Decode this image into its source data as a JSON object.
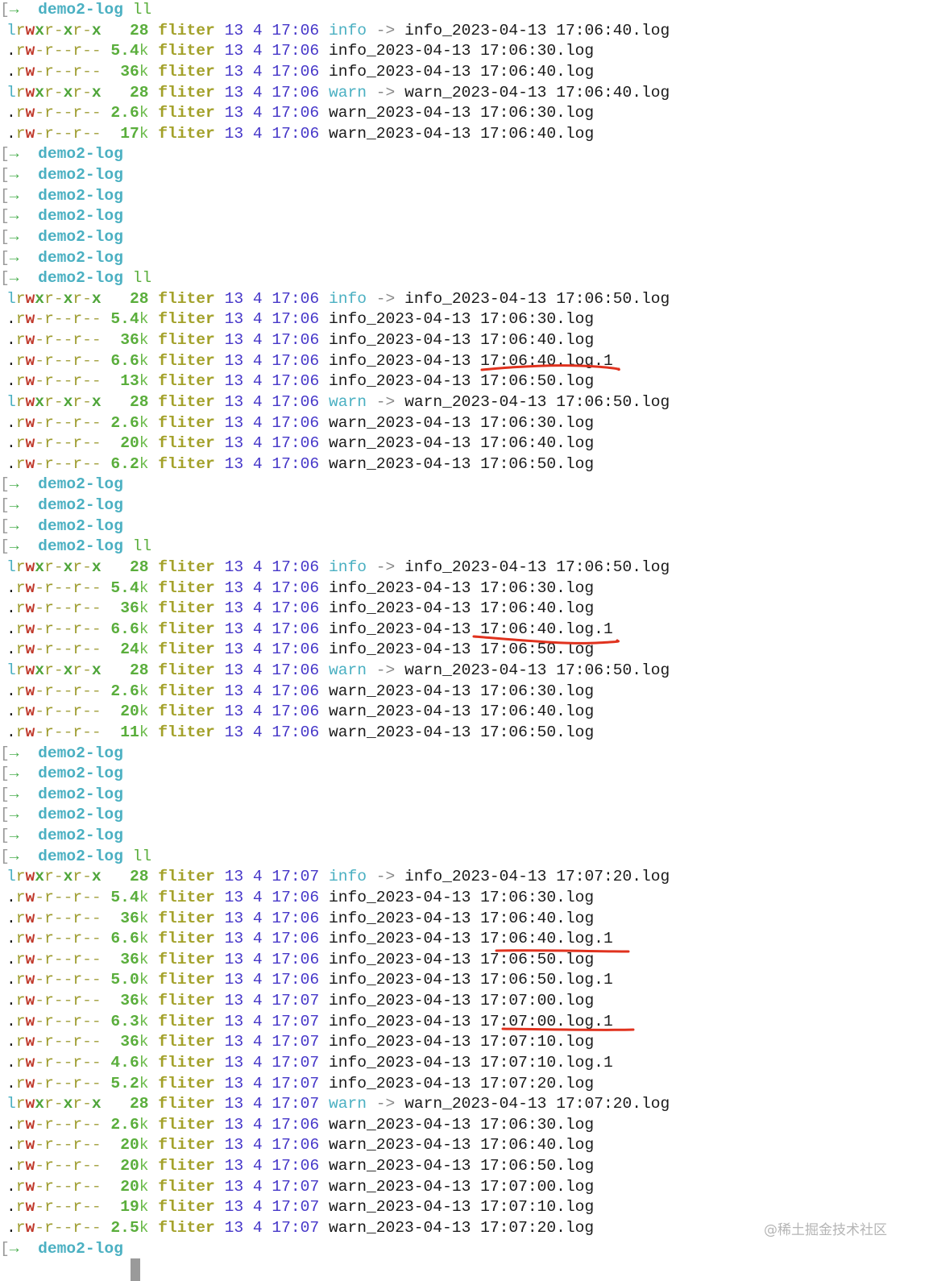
{
  "prompt": {
    "bracket": "[",
    "arrow": "→",
    "dir": "demo2-log"
  },
  "lines": [
    {
      "type": "prompt",
      "cmd": "ll"
    },
    {
      "type": "entry",
      "e": [
        "lrwxr-xr-x",
        "28",
        "",
        "fliter",
        "13",
        "4",
        "17:06",
        "info",
        "info_2023-04-13 17:06:40.log"
      ]
    },
    {
      "type": "entry",
      "e": [
        ".rw-r--r--",
        "5.4",
        "k",
        "fliter",
        "13",
        "4",
        "17:06",
        "info_2023-04-13 17:06:30.log",
        ""
      ]
    },
    {
      "type": "entry",
      "e": [
        ".rw-r--r--",
        "36",
        "k",
        "fliter",
        "13",
        "4",
        "17:06",
        "info_2023-04-13 17:06:40.log",
        ""
      ]
    },
    {
      "type": "entry",
      "e": [
        "lrwxr-xr-x",
        "28",
        "",
        "fliter",
        "13",
        "4",
        "17:06",
        "warn",
        "warn_2023-04-13 17:06:40.log"
      ]
    },
    {
      "type": "entry",
      "e": [
        ".rw-r--r--",
        "2.6",
        "k",
        "fliter",
        "13",
        "4",
        "17:06",
        "warn_2023-04-13 17:06:30.log",
        ""
      ]
    },
    {
      "type": "entry",
      "e": [
        ".rw-r--r--",
        "17",
        "k",
        "fliter",
        "13",
        "4",
        "17:06",
        "warn_2023-04-13 17:06:40.log",
        ""
      ]
    },
    {
      "type": "prompt",
      "cmd": ""
    },
    {
      "type": "prompt",
      "cmd": ""
    },
    {
      "type": "prompt",
      "cmd": ""
    },
    {
      "type": "prompt",
      "cmd": ""
    },
    {
      "type": "prompt",
      "cmd": ""
    },
    {
      "type": "prompt",
      "cmd": ""
    },
    {
      "type": "prompt",
      "cmd": "ll"
    },
    {
      "type": "entry",
      "e": [
        "lrwxr-xr-x",
        "28",
        "",
        "fliter",
        "13",
        "4",
        "17:06",
        "info",
        "info_2023-04-13 17:06:50.log"
      ]
    },
    {
      "type": "entry",
      "e": [
        ".rw-r--r--",
        "5.4",
        "k",
        "fliter",
        "13",
        "4",
        "17:06",
        "info_2023-04-13 17:06:30.log",
        ""
      ]
    },
    {
      "type": "entry",
      "e": [
        ".rw-r--r--",
        "36",
        "k",
        "fliter",
        "13",
        "4",
        "17:06",
        "info_2023-04-13 17:06:40.log",
        ""
      ]
    },
    {
      "type": "entry",
      "e": [
        ".rw-r--r--",
        "6.6",
        "k",
        "fliter",
        "13",
        "4",
        "17:06",
        "info_2023-04-13 17:06:40.log.1",
        ""
      ]
    },
    {
      "type": "entry",
      "e": [
        ".rw-r--r--",
        "13",
        "k",
        "fliter",
        "13",
        "4",
        "17:06",
        "info_2023-04-13 17:06:50.log",
        ""
      ]
    },
    {
      "type": "entry",
      "e": [
        "lrwxr-xr-x",
        "28",
        "",
        "fliter",
        "13",
        "4",
        "17:06",
        "warn",
        "warn_2023-04-13 17:06:50.log"
      ]
    },
    {
      "type": "entry",
      "e": [
        ".rw-r--r--",
        "2.6",
        "k",
        "fliter",
        "13",
        "4",
        "17:06",
        "warn_2023-04-13 17:06:30.log",
        ""
      ]
    },
    {
      "type": "entry",
      "e": [
        ".rw-r--r--",
        "20",
        "k",
        "fliter",
        "13",
        "4",
        "17:06",
        "warn_2023-04-13 17:06:40.log",
        ""
      ]
    },
    {
      "type": "entry",
      "e": [
        ".rw-r--r--",
        "6.2",
        "k",
        "fliter",
        "13",
        "4",
        "17:06",
        "warn_2023-04-13 17:06:50.log",
        ""
      ]
    },
    {
      "type": "prompt",
      "cmd": ""
    },
    {
      "type": "prompt",
      "cmd": ""
    },
    {
      "type": "prompt",
      "cmd": ""
    },
    {
      "type": "prompt",
      "cmd": "ll"
    },
    {
      "type": "entry",
      "e": [
        "lrwxr-xr-x",
        "28",
        "",
        "fliter",
        "13",
        "4",
        "17:06",
        "info",
        "info_2023-04-13 17:06:50.log"
      ]
    },
    {
      "type": "entry",
      "e": [
        ".rw-r--r--",
        "5.4",
        "k",
        "fliter",
        "13",
        "4",
        "17:06",
        "info_2023-04-13 17:06:30.log",
        ""
      ]
    },
    {
      "type": "entry",
      "e": [
        ".rw-r--r--",
        "36",
        "k",
        "fliter",
        "13",
        "4",
        "17:06",
        "info_2023-04-13 17:06:40.log",
        ""
      ]
    },
    {
      "type": "entry",
      "e": [
        ".rw-r--r--",
        "6.6",
        "k",
        "fliter",
        "13",
        "4",
        "17:06",
        "info_2023-04-13 17:06:40.log.1",
        ""
      ]
    },
    {
      "type": "entry",
      "e": [
        ".rw-r--r--",
        "24",
        "k",
        "fliter",
        "13",
        "4",
        "17:06",
        "info_2023-04-13 17:06:50.log",
        ""
      ]
    },
    {
      "type": "entry",
      "e": [
        "lrwxr-xr-x",
        "28",
        "",
        "fliter",
        "13",
        "4",
        "17:06",
        "warn",
        "warn_2023-04-13 17:06:50.log"
      ]
    },
    {
      "type": "entry",
      "e": [
        ".rw-r--r--",
        "2.6",
        "k",
        "fliter",
        "13",
        "4",
        "17:06",
        "warn_2023-04-13 17:06:30.log",
        ""
      ]
    },
    {
      "type": "entry",
      "e": [
        ".rw-r--r--",
        "20",
        "k",
        "fliter",
        "13",
        "4",
        "17:06",
        "warn_2023-04-13 17:06:40.log",
        ""
      ]
    },
    {
      "type": "entry",
      "e": [
        ".rw-r--r--",
        "11",
        "k",
        "fliter",
        "13",
        "4",
        "17:06",
        "warn_2023-04-13 17:06:50.log",
        ""
      ]
    },
    {
      "type": "prompt",
      "cmd": ""
    },
    {
      "type": "prompt",
      "cmd": ""
    },
    {
      "type": "prompt",
      "cmd": ""
    },
    {
      "type": "prompt",
      "cmd": ""
    },
    {
      "type": "prompt",
      "cmd": ""
    },
    {
      "type": "prompt",
      "cmd": "ll"
    },
    {
      "type": "entry",
      "e": [
        "lrwxr-xr-x",
        "28",
        "",
        "fliter",
        "13",
        "4",
        "17:07",
        "info",
        "info_2023-04-13 17:07:20.log"
      ]
    },
    {
      "type": "entry",
      "e": [
        ".rw-r--r--",
        "5.4",
        "k",
        "fliter",
        "13",
        "4",
        "17:06",
        "info_2023-04-13 17:06:30.log",
        ""
      ]
    },
    {
      "type": "entry",
      "e": [
        ".rw-r--r--",
        "36",
        "k",
        "fliter",
        "13",
        "4",
        "17:06",
        "info_2023-04-13 17:06:40.log",
        ""
      ]
    },
    {
      "type": "entry",
      "e": [
        ".rw-r--r--",
        "6.6",
        "k",
        "fliter",
        "13",
        "4",
        "17:06",
        "info_2023-04-13 17:06:40.log.1",
        ""
      ]
    },
    {
      "type": "entry",
      "e": [
        ".rw-r--r--",
        "36",
        "k",
        "fliter",
        "13",
        "4",
        "17:06",
        "info_2023-04-13 17:06:50.log",
        ""
      ]
    },
    {
      "type": "entry",
      "e": [
        ".rw-r--r--",
        "5.0",
        "k",
        "fliter",
        "13",
        "4",
        "17:06",
        "info_2023-04-13 17:06:50.log.1",
        ""
      ]
    },
    {
      "type": "entry",
      "e": [
        ".rw-r--r--",
        "36",
        "k",
        "fliter",
        "13",
        "4",
        "17:07",
        "info_2023-04-13 17:07:00.log",
        ""
      ]
    },
    {
      "type": "entry",
      "e": [
        ".rw-r--r--",
        "6.3",
        "k",
        "fliter",
        "13",
        "4",
        "17:07",
        "info_2023-04-13 17:07:00.log.1",
        ""
      ]
    },
    {
      "type": "entry",
      "e": [
        ".rw-r--r--",
        "36",
        "k",
        "fliter",
        "13",
        "4",
        "17:07",
        "info_2023-04-13 17:07:10.log",
        ""
      ]
    },
    {
      "type": "entry",
      "e": [
        ".rw-r--r--",
        "4.6",
        "k",
        "fliter",
        "13",
        "4",
        "17:07",
        "info_2023-04-13 17:07:10.log.1",
        ""
      ]
    },
    {
      "type": "entry",
      "e": [
        ".rw-r--r--",
        "5.2",
        "k",
        "fliter",
        "13",
        "4",
        "17:07",
        "info_2023-04-13 17:07:20.log",
        ""
      ]
    },
    {
      "type": "entry",
      "e": [
        "lrwxr-xr-x",
        "28",
        "",
        "fliter",
        "13",
        "4",
        "17:07",
        "warn",
        "warn_2023-04-13 17:07:20.log"
      ]
    },
    {
      "type": "entry",
      "e": [
        ".rw-r--r--",
        "2.6",
        "k",
        "fliter",
        "13",
        "4",
        "17:06",
        "warn_2023-04-13 17:06:30.log",
        ""
      ]
    },
    {
      "type": "entry",
      "e": [
        ".rw-r--r--",
        "20",
        "k",
        "fliter",
        "13",
        "4",
        "17:06",
        "warn_2023-04-13 17:06:40.log",
        ""
      ]
    },
    {
      "type": "entry",
      "e": [
        ".rw-r--r--",
        "20",
        "k",
        "fliter",
        "13",
        "4",
        "17:06",
        "warn_2023-04-13 17:06:50.log",
        ""
      ]
    },
    {
      "type": "entry",
      "e": [
        ".rw-r--r--",
        "20",
        "k",
        "fliter",
        "13",
        "4",
        "17:07",
        "warn_2023-04-13 17:07:00.log",
        ""
      ]
    },
    {
      "type": "entry",
      "e": [
        ".rw-r--r--",
        "19",
        "k",
        "fliter",
        "13",
        "4",
        "17:07",
        "warn_2023-04-13 17:07:10.log",
        ""
      ]
    },
    {
      "type": "entry",
      "e": [
        ".rw-r--r--",
        "2.5",
        "k",
        "fliter",
        "13",
        "4",
        "17:07",
        "warn_2023-04-13 17:07:20.log",
        ""
      ]
    },
    {
      "type": "prompt",
      "cmd": ""
    }
  ],
  "symlink_arrow": "->",
  "watermark": "@稀土掘金技术社区",
  "annotation_color": "#e0321e"
}
